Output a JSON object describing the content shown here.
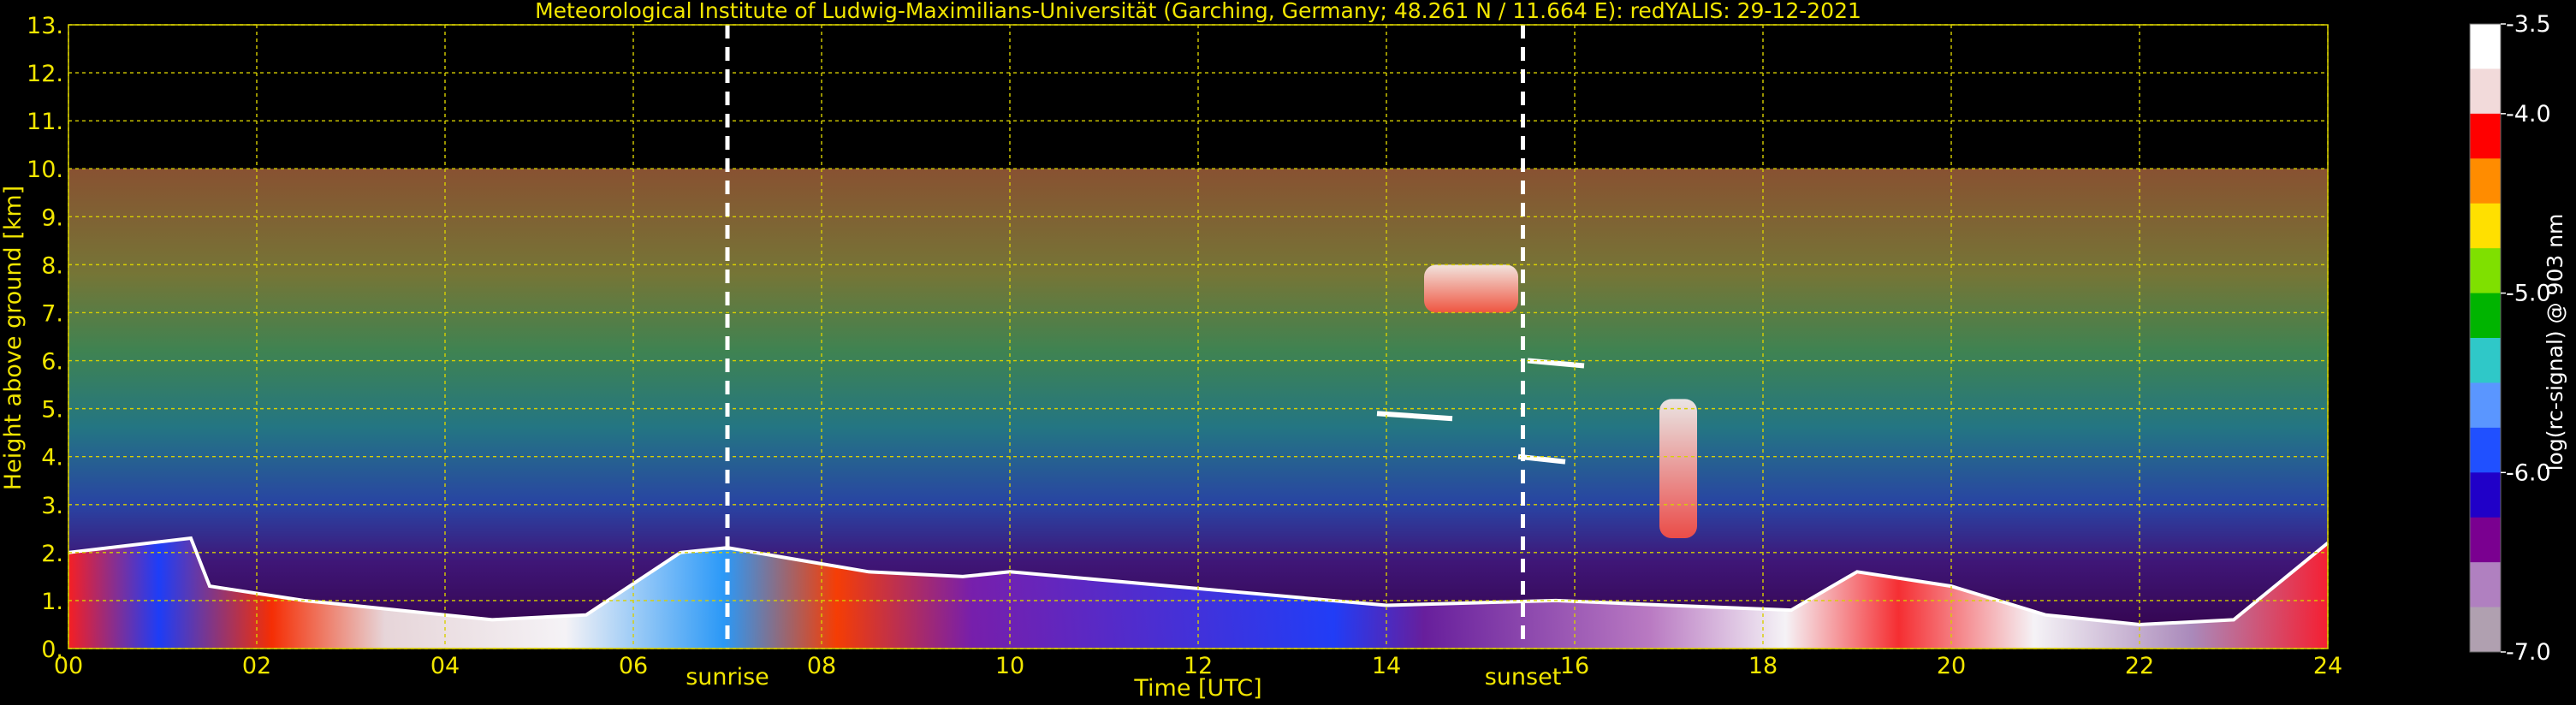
{
  "chart_data": {
    "type": "heatmap",
    "title": "Meteorological Institute of Ludwig-Maximilians-Universität (Garching, Germany; 48.261 N / 11.664 E):    redYALIS: 29-12-2021",
    "xlabel": "Time [UTC]",
    "ylabel": "Height above ground [km]",
    "xlim": [
      0,
      24
    ],
    "ylim": [
      0,
      13
    ],
    "x_ticks": [
      "00",
      "02",
      "04",
      "06",
      "08",
      "10",
      "12",
      "14",
      "16",
      "18",
      "20",
      "22",
      "24"
    ],
    "y_ticks": [
      "0.",
      "1.",
      "2.",
      "3.",
      "4.",
      "5.",
      "6.",
      "7.",
      "8.",
      "9.",
      "10.",
      "11.",
      "12.",
      "13."
    ],
    "grid": true,
    "events": [
      {
        "label": "sunrise",
        "x": 7.0
      },
      {
        "label": "sunset",
        "x": 15.45
      }
    ],
    "data_top_km": 10,
    "colorbar": {
      "label": "log(rc-signal) @ 903 nm",
      "range": [
        -7.0,
        -3.5
      ],
      "ticks": [
        "-3.5",
        "-4.0",
        "-5.0",
        "-6.0",
        "-7.0"
      ],
      "colors": [
        "#ffffff",
        "#f2dada",
        "#ff0000",
        "#ff8c00",
        "#ffe000",
        "#7fe000",
        "#00b400",
        "#2fc8c8",
        "#5a96ff",
        "#2050ff",
        "#2000c8",
        "#7a0090",
        "#b080c0",
        "#b0a0b0"
      ]
    },
    "cloud_features": [
      {
        "name": "aerosol layer top",
        "x": [
          0,
          1.3,
          1.5,
          2.5,
          3.5,
          4.5,
          5.5,
          6.5,
          7.0,
          7.6,
          8.5,
          9.5,
          10.0,
          14.0,
          15.8,
          17.0,
          18.3,
          19.0,
          20.0,
          21.0,
          22.0,
          23.0,
          24.0
        ],
        "y": [
          2.0,
          2.3,
          1.3,
          1.0,
          0.8,
          0.6,
          0.7,
          2.0,
          2.1,
          1.9,
          1.6,
          1.5,
          1.6,
          0.9,
          1.0,
          0.9,
          0.8,
          1.6,
          1.3,
          0.7,
          0.5,
          0.6,
          2.2
        ]
      },
      {
        "name": "cirrus 14.4-15.4 h",
        "x": [
          14.4,
          15.4
        ],
        "y": [
          7.0,
          8.0
        ]
      },
      {
        "name": "cirrus 16.9-17.3 h",
        "x": [
          16.9,
          17.3
        ],
        "y": [
          2.3,
          5.2
        ]
      },
      {
        "name": "thin layer",
        "x": [
          13.9,
          14.7
        ],
        "y": [
          4.9,
          4.9
        ]
      },
      {
        "name": "thin layer",
        "x": [
          15.5,
          16.1
        ],
        "y": [
          6.0,
          6.0
        ]
      },
      {
        "name": "thin layer",
        "x": [
          15.4,
          15.9
        ],
        "y": [
          4.0,
          4.0
        ]
      }
    ]
  }
}
